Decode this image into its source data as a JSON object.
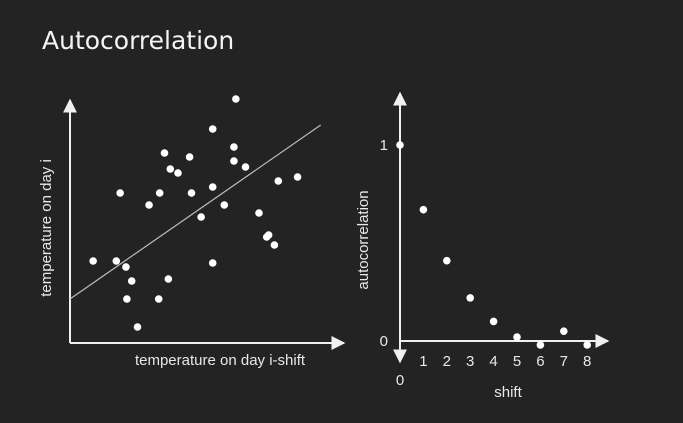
{
  "slide": {
    "title": "Autocorrelation"
  },
  "colors": {
    "background": "#232323",
    "foreground": "#ffffff",
    "axis": "#f0f0f0",
    "trend_line": "#bdbdbd"
  },
  "chart_data": [
    {
      "type": "scatter",
      "xlabel": "temperature on day i-shift",
      "ylabel": "temperature on day i",
      "x_ticks": "none",
      "y_ticks": "none",
      "trend_line": true,
      "xlim": [
        0,
        280
      ],
      "ylim": [
        0,
        250
      ],
      "points": [
        [
          24,
          82
        ],
        [
          48,
          82
        ],
        [
          52,
          150
        ],
        [
          58,
          76
        ],
        [
          59,
          44
        ],
        [
          64,
          62
        ],
        [
          70,
          16
        ],
        [
          82,
          138
        ],
        [
          92,
          44
        ],
        [
          93,
          150
        ],
        [
          98,
          190
        ],
        [
          102,
          64
        ],
        [
          104,
          174
        ],
        [
          112,
          170
        ],
        [
          124,
          186
        ],
        [
          126,
          150
        ],
        [
          136,
          126
        ],
        [
          148,
          214
        ],
        [
          148,
          80
        ],
        [
          148,
          156
        ],
        [
          160,
          138
        ],
        [
          170,
          196
        ],
        [
          170,
          182
        ],
        [
          172,
          244
        ],
        [
          182,
          176
        ],
        [
          196,
          130
        ],
        [
          204,
          106
        ],
        [
          206,
          108
        ],
        [
          212,
          98
        ],
        [
          216,
          162
        ],
        [
          236,
          166
        ]
      ],
      "trend": {
        "x": [
          0,
          260
        ],
        "y": [
          44,
          218
        ]
      }
    },
    {
      "type": "scatter",
      "xlabel": "shift",
      "ylabel": "autocorrelation",
      "origin_label": "0",
      "x_ticks": [
        "1",
        "2",
        "3",
        "4",
        "5",
        "6",
        "7",
        "8"
      ],
      "y_ticks": [
        "0",
        "1"
      ],
      "xlim": [
        0,
        9
      ],
      "ylim": [
        0,
        1.4
      ],
      "points": [
        [
          0,
          1.0
        ],
        [
          1,
          0.67
        ],
        [
          2,
          0.41
        ],
        [
          3,
          0.22
        ],
        [
          4,
          0.1
        ],
        [
          5,
          0.02
        ],
        [
          6,
          -0.02
        ],
        [
          7,
          0.05
        ],
        [
          8,
          -0.02
        ]
      ]
    }
  ]
}
